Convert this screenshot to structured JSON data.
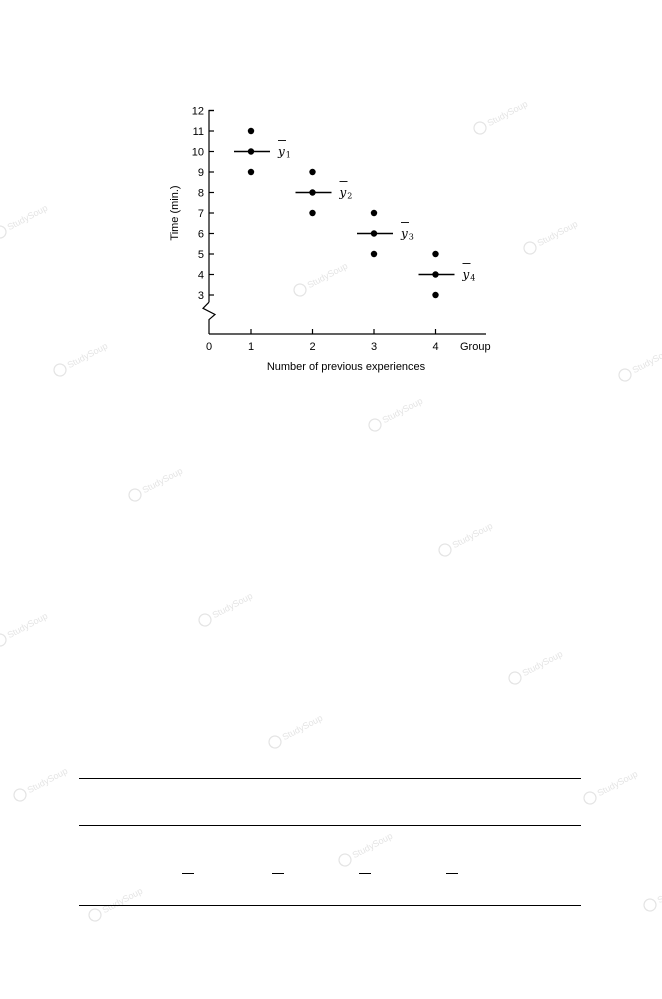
{
  "chart_data": {
    "type": "scatter",
    "title": "",
    "xlabel": "Number of previous experiences",
    "ylabel": "Time (min.)",
    "x_extra_label": "Group",
    "origin_label": "0",
    "x_ticks": [
      "1",
      "2",
      "3",
      "4"
    ],
    "y_ticks": [
      "3",
      "4",
      "5",
      "6",
      "7",
      "8",
      "9",
      "10",
      "11",
      "12"
    ],
    "xlim": [
      0,
      4.5
    ],
    "ylim": [
      2,
      12
    ],
    "y_axis_break": true,
    "grid": false,
    "legend": "none",
    "points": [
      {
        "x": 1,
        "y": 9
      },
      {
        "x": 1,
        "y": 10
      },
      {
        "x": 1,
        "y": 11
      },
      {
        "x": 2,
        "y": 7
      },
      {
        "x": 2,
        "y": 8
      },
      {
        "x": 2,
        "y": 9
      },
      {
        "x": 3,
        "y": 5
      },
      {
        "x": 3,
        "y": 6
      },
      {
        "x": 3,
        "y": 7
      },
      {
        "x": 4,
        "y": 3
      },
      {
        "x": 4,
        "y": 4
      },
      {
        "x": 4,
        "y": 5
      }
    ],
    "group_means": [
      {
        "x": 1,
        "y": 10,
        "label": "y",
        "sub": "1"
      },
      {
        "x": 2,
        "y": 8,
        "label": "y",
        "sub": "2"
      },
      {
        "x": 3,
        "y": 6,
        "label": "y",
        "sub": "3"
      },
      {
        "x": 4,
        "y": 4,
        "label": "y",
        "sub": "4"
      }
    ]
  },
  "table": {
    "rules": 3,
    "overbars": 4
  },
  "watermark_text": "StudySoup",
  "colors": {
    "ink": "#000000",
    "watermark": "#e4e4e4"
  }
}
